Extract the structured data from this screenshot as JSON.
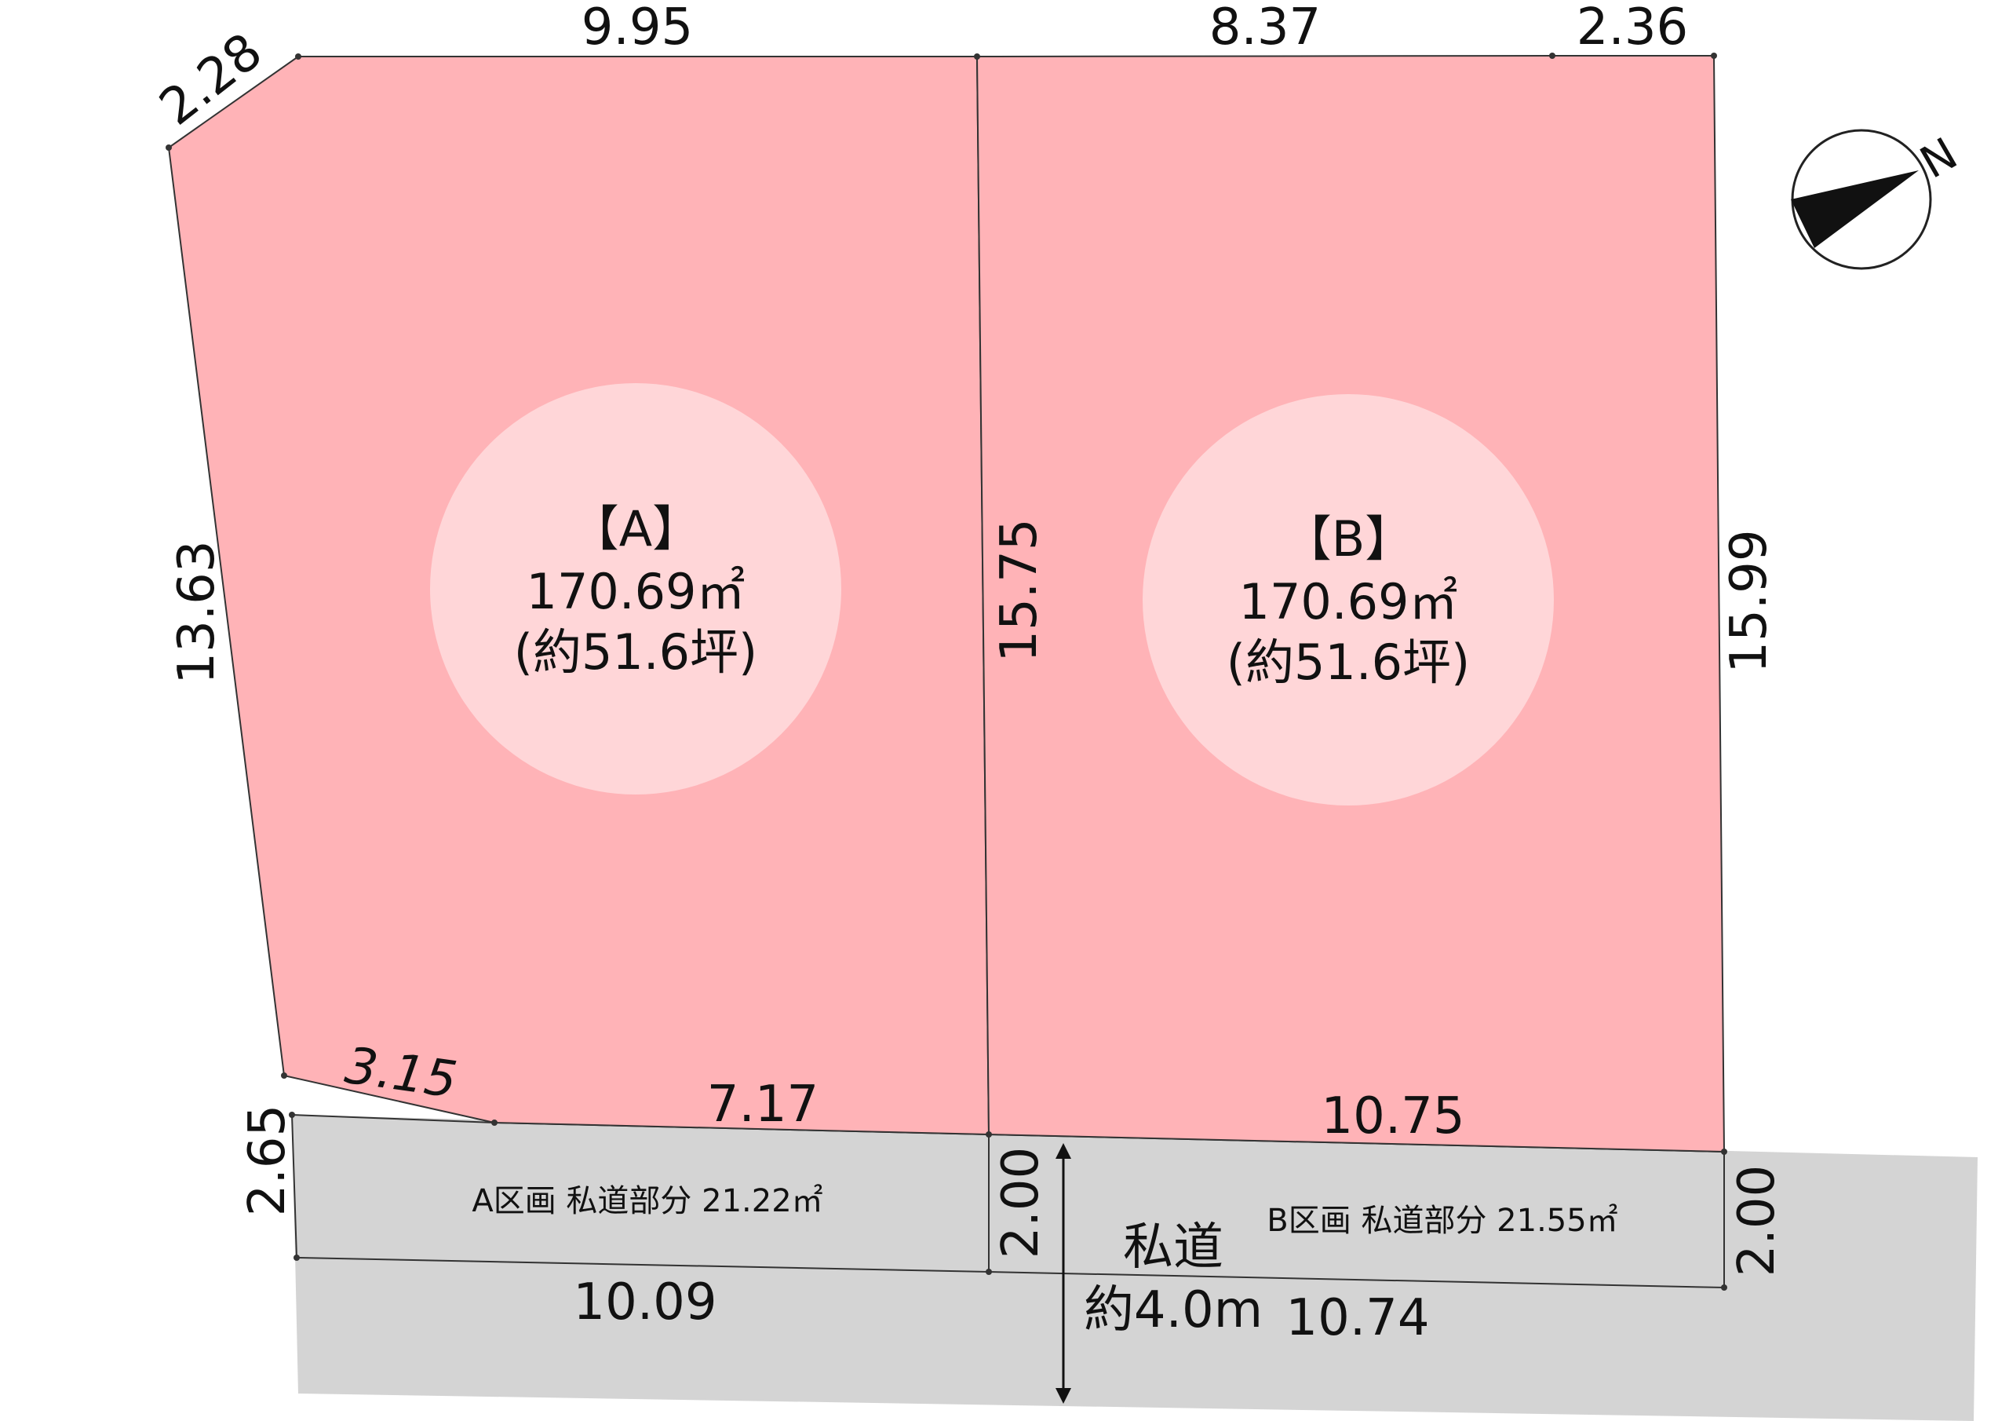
{
  "lots": [
    {
      "id": "A",
      "label": "【A】",
      "area": "170.69㎡",
      "tsubo": "(約51.6坪)"
    },
    {
      "id": "B",
      "label": "【B】",
      "area": "170.69㎡",
      "tsubo": "(約51.6坪)"
    }
  ],
  "dimensions": {
    "top_a": "9.95",
    "top_b1": "8.37",
    "top_b2": "2.36",
    "corner": "2.28",
    "left": "13.63",
    "divider": "15.75",
    "right": "15.99",
    "bottom_a_slant": "3.15",
    "bottom_a": "7.17",
    "bottom_b": "10.75",
    "road_left": "2.65",
    "road_mid": "2.00",
    "road_right": "2.00",
    "road_a_bottom": "10.09",
    "road_b_bottom": "10.74"
  },
  "road": {
    "a_part": "A区画 私道部分 21.22㎡",
    "b_part": "B区画 私道部分 21.55㎡",
    "name": "私道",
    "width": "約4.0m"
  },
  "compass": {
    "north": "N"
  },
  "colors": {
    "lot_fill": "#ffb3b7",
    "lot_circle": "#ffd6d8",
    "road_fill": "#d4d4d4",
    "line": "#333333",
    "needle": "#111111"
  }
}
